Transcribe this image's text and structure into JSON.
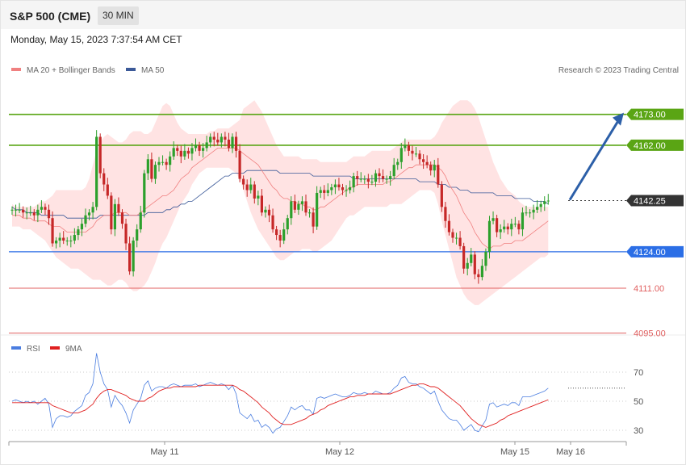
{
  "header": {
    "title": "S&P 500 (CME)",
    "interval": "30 MIN",
    "datetime": "Monday, May 15, 2023 7:37:54 AM CET"
  },
  "copyright": "Research © 2023 Trading Central",
  "colors": {
    "up": "#2ca02c",
    "down": "#c62828",
    "bands_fill": "#ffd9d9",
    "ma20": "#f08080",
    "ma50": "#3b5998",
    "resistance": "#5aa514",
    "support": "#2b6ee6",
    "lower_support": "#e06060",
    "arrow": "#2c5fa8",
    "last_price": "#333333",
    "rsi": "#4a7de0",
    "rsi_ma": "#e02020"
  },
  "chart_data": [
    {
      "type": "candlestick",
      "title": "",
      "legend": [
        "MA 20 + Bollinger Bands",
        "MA 50"
      ],
      "legend_position": "top-left",
      "ylim": [
        4090,
        4185
      ],
      "x_tick_labels": [
        "May 11",
        "May 12",
        "May 15",
        "May 16"
      ],
      "levels": [
        {
          "label": "4173.00",
          "value": 4173.0,
          "kind": "resistance"
        },
        {
          "label": "4162.00",
          "value": 4162.0,
          "kind": "resistance"
        },
        {
          "label": "4142.25",
          "value": 4142.25,
          "kind": "last_price"
        },
        {
          "label": "4124.00",
          "value": 4124.0,
          "kind": "support"
        },
        {
          "label": "4111.00",
          "value": 4111.0,
          "kind": "support"
        },
        {
          "label": "4095.00",
          "value": 4095.0,
          "kind": "support"
        }
      ],
      "projection": {
        "from": 4142.5,
        "to": 4173.0
      },
      "close": [
        4139,
        4139,
        4139,
        4138,
        4138,
        4138,
        4137,
        4139,
        4140,
        4139,
        4136,
        4127,
        4128,
        4129,
        4128,
        4128,
        4128,
        4130,
        4132,
        4134,
        4137,
        4138,
        4140,
        4165,
        4152,
        4148,
        4144,
        4132,
        4141,
        4138,
        4134,
        4127,
        4117,
        4128,
        4132,
        4138,
        4152,
        4157,
        4150,
        4155,
        4156,
        4156,
        4155,
        4158,
        4161,
        4160,
        4158,
        4160,
        4159,
        4161,
        4162,
        4160,
        4161,
        4163,
        4165,
        4164,
        4163,
        4165,
        4164,
        4161,
        4165,
        4160,
        4150,
        4148,
        4146,
        4148,
        4143,
        4144,
        4138,
        4139,
        4137,
        4132,
        4130,
        4128,
        4132,
        4136,
        4142,
        4139,
        4141,
        4142,
        4138,
        4138,
        4133,
        4145,
        4146,
        4145,
        4146,
        4147,
        4148,
        4147,
        4146,
        4146,
        4147,
        4151,
        4150,
        4150,
        4150,
        4149,
        4149,
        4152,
        4151,
        4150,
        4150,
        4151,
        4155,
        4156,
        4161,
        4162,
        4160,
        4159,
        4159,
        4157,
        4156,
        4155,
        4153,
        4155,
        4148,
        4140,
        4135,
        4131,
        4129,
        4129,
        4126,
        4118,
        4120,
        4123,
        4116,
        4115,
        4119,
        4124,
        4135,
        4136,
        4131,
        4132,
        4133,
        4132,
        4134,
        4134,
        4132,
        4138,
        4138,
        4138,
        4139,
        4140,
        4141,
        4142,
        4142.25
      ],
      "ma20": [
        4137,
        4137,
        4137,
        4136,
        4136,
        4136,
        4135,
        4135,
        4135,
        4135,
        4134,
        4133,
        4133,
        4133,
        4132,
        4131,
        4131,
        4131,
        4131,
        4131,
        4131,
        4132,
        4133,
        4135,
        4136,
        4137,
        4137,
        4137,
        4138,
        4138,
        4138,
        4138,
        4137,
        4137,
        4137,
        4138,
        4139,
        4140,
        4141,
        4142,
        4143,
        4144,
        4144,
        4145,
        4146,
        4148,
        4150,
        4151,
        4152,
        4154,
        4155,
        4156,
        4157,
        4158,
        4159,
        4160,
        4161,
        4161,
        4161,
        4161,
        4161,
        4161,
        4160,
        4159,
        4158,
        4157,
        4156,
        4155,
        4153,
        4151,
        4149,
        4147,
        4146,
        4144,
        4143,
        4143,
        4142,
        4142,
        4141,
        4141,
        4140,
        4140,
        4139,
        4139,
        4140,
        4140,
        4141,
        4142,
        4143,
        4144,
        4145,
        4146,
        4147,
        4147,
        4148,
        4148,
        4148,
        4148,
        4148,
        4148,
        4148,
        4148,
        4149,
        4149,
        4150,
        4151,
        4152,
        4153,
        4154,
        4154,
        4155,
        4155,
        4155,
        4155,
        4155,
        4155,
        4154,
        4153,
        4151,
        4148,
        4146,
        4144,
        4141,
        4138,
        4136,
        4134,
        4131,
        4129,
        4127,
        4126,
        4125,
        4126,
        4126,
        4126,
        4127,
        4127,
        4127,
        4128,
        4128,
        4128,
        4129,
        4130,
        4131,
        4132,
        4133,
        4134,
        4135
      ],
      "ma50": [
        4140,
        4139,
        4139,
        4139,
        4138,
        4138,
        4138,
        4138,
        4137,
        4137,
        4137,
        4137,
        4137,
        4137,
        4137,
        4136,
        4136,
        4136,
        4136,
        4136,
        4136,
        4136,
        4136,
        4136,
        4137,
        4137,
        4137,
        4137,
        4137,
        4137,
        4137,
        4137,
        4137,
        4137,
        4137,
        4137,
        4137,
        4138,
        4138,
        4138,
        4138,
        4138,
        4139,
        4139,
        4140,
        4140,
        4141,
        4141,
        4142,
        4142,
        4143,
        4144,
        4145,
        4146,
        4147,
        4148,
        4149,
        4150,
        4151,
        4151,
        4152,
        4152,
        4152,
        4152,
        4153,
        4153,
        4153,
        4153,
        4153,
        4153,
        4153,
        4153,
        4153,
        4152,
        4152,
        4152,
        4152,
        4152,
        4152,
        4152,
        4152,
        4152,
        4151,
        4151,
        4151,
        4151,
        4151,
        4151,
        4151,
        4151,
        4151,
        4151,
        4151,
        4150,
        4150,
        4150,
        4150,
        4150,
        4150,
        4150,
        4150,
        4150,
        4150,
        4150,
        4150,
        4150,
        4150,
        4150,
        4150,
        4150,
        4150,
        4149,
        4149,
        4149,
        4149,
        4149,
        4148,
        4148,
        4148,
        4147,
        4147,
        4147,
        4146,
        4146,
        4146,
        4145,
        4145,
        4145,
        4145,
        4145,
        4145,
        4145,
        4144,
        4144,
        4144,
        4144,
        4144,
        4143,
        4143,
        4143,
        4143,
        4143,
        4142,
        4142,
        4142,
        4142,
        4141
      ],
      "bb_upper": [
        4141,
        4140,
        4140,
        4140,
        4140,
        4140,
        4140,
        4141,
        4142,
        4142,
        4143,
        4144,
        4146,
        4146,
        4146,
        4146,
        4146,
        4146,
        4146,
        4146,
        4147,
        4150,
        4155,
        4160,
        4163,
        4165,
        4166,
        4165,
        4164,
        4163,
        4163,
        4164,
        4166,
        4167,
        4167,
        4167,
        4166,
        4166,
        4167,
        4170,
        4173,
        4176,
        4177,
        4176,
        4173,
        4170,
        4168,
        4167,
        4166,
        4166,
        4166,
        4166,
        4166,
        4166,
        4167,
        4167,
        4168,
        4168,
        4168,
        4168,
        4169,
        4170,
        4171,
        4175,
        4176,
        4177,
        4178,
        4176,
        4174,
        4171,
        4168,
        4165,
        4162,
        4160,
        4158,
        4158,
        4158,
        4158,
        4158,
        4157,
        4157,
        4157,
        4157,
        4157,
        4156,
        4156,
        4156,
        4156,
        4156,
        4156,
        4156,
        4156,
        4157,
        4158,
        4158,
        4158,
        4158,
        4159,
        4160,
        4160,
        4160,
        4160,
        4160,
        4160,
        4161,
        4162,
        4163,
        4164,
        4164,
        4164,
        4164,
        4164,
        4164,
        4164,
        4164,
        4165,
        4167,
        4170,
        4172,
        4174,
        4176,
        4177,
        4178,
        4178,
        4178,
        4177,
        4175,
        4172,
        4168,
        4164,
        4160,
        4156,
        4153,
        4150,
        4148,
        4146,
        4145,
        4144,
        4142,
        4141,
        4140,
        4140,
        4140,
        4140,
        4140,
        4140,
        4140
      ],
      "bb_lower": [
        4133,
        4133,
        4133,
        4132,
        4132,
        4132,
        4131,
        4130,
        4129,
        4128,
        4126,
        4124,
        4122,
        4121,
        4120,
        4119,
        4118,
        4118,
        4118,
        4117,
        4116,
        4115,
        4114,
        4114,
        4114,
        4113,
        4112,
        4112,
        4113,
        4114,
        4114,
        4113,
        4111,
        4110,
        4110,
        4111,
        4112,
        4114,
        4117,
        4120,
        4124,
        4127,
        4129,
        4132,
        4135,
        4138,
        4141,
        4143,
        4145,
        4148,
        4150,
        4152,
        4153,
        4154,
        4154,
        4154,
        4154,
        4154,
        4154,
        4154,
        4153,
        4152,
        4150,
        4146,
        4142,
        4138,
        4135,
        4132,
        4130,
        4128,
        4126,
        4124,
        4122,
        4121,
        4121,
        4122,
        4123,
        4124,
        4124,
        4125,
        4125,
        4125,
        4124,
        4124,
        4125,
        4126,
        4127,
        4128,
        4130,
        4132,
        4134,
        4136,
        4137,
        4137,
        4138,
        4139,
        4140,
        4140,
        4140,
        4140,
        4140,
        4140,
        4140,
        4141,
        4141,
        4141,
        4141,
        4142,
        4143,
        4144,
        4145,
        4146,
        4146,
        4146,
        4146,
        4145,
        4141,
        4135,
        4130,
        4125,
        4120,
        4115,
        4112,
        4109,
        4107,
        4106,
        4105,
        4105,
        4106,
        4107,
        4108,
        4109,
        4110,
        4111,
        4112,
        4113,
        4114,
        4115,
        4116,
        4117,
        4118,
        4119,
        4120,
        4121,
        4122,
        4122,
        4123
      ]
    },
    {
      "type": "line",
      "title": "",
      "legend": [
        "RSI",
        "9MA"
      ],
      "legend_position": "top-left",
      "ylim": [
        15,
        80
      ],
      "y_tick_labels": [
        "70",
        "50",
        "30"
      ],
      "rsi": [
        50,
        51,
        50,
        49,
        50,
        49,
        50,
        48,
        50,
        52,
        48,
        32,
        38,
        40,
        40,
        39,
        40,
        43,
        45,
        47,
        54,
        56,
        62,
        83,
        70,
        62,
        58,
        46,
        54,
        50,
        47,
        42,
        35,
        44,
        48,
        52,
        61,
        64,
        57,
        59,
        60,
        60,
        59,
        61,
        62,
        61,
        60,
        61,
        61,
        61,
        62,
        60,
        61,
        62,
        63,
        62,
        61,
        62,
        61,
        58,
        61,
        55,
        42,
        40,
        38,
        41,
        36,
        37,
        32,
        34,
        32,
        28,
        31,
        32,
        36,
        40,
        46,
        44,
        46,
        47,
        44,
        44,
        41,
        52,
        53,
        52,
        53,
        54,
        55,
        54,
        53,
        53,
        54,
        56,
        55,
        55,
        56,
        55,
        55,
        57,
        56,
        55,
        55,
        56,
        59,
        61,
        66,
        67,
        63,
        62,
        62,
        60,
        59,
        57,
        55,
        57,
        50,
        44,
        41,
        38,
        37,
        37,
        34,
        30,
        32,
        34,
        30,
        29,
        33,
        37,
        48,
        49,
        46,
        47,
        48,
        47,
        49,
        49,
        47,
        53,
        53,
        53,
        54,
        55,
        56,
        57,
        59
      ],
      "rsi_ma": [
        49,
        49,
        49,
        49,
        49,
        49,
        49,
        49,
        49,
        49,
        49,
        47,
        46,
        45,
        44,
        43,
        42,
        42,
        42,
        43,
        44,
        46,
        48,
        52,
        55,
        57,
        58,
        58,
        57,
        56,
        55,
        54,
        52,
        51,
        50,
        50,
        50,
        52,
        53,
        55,
        57,
        58,
        59,
        59,
        60,
        60,
        60,
        60,
        60,
        60,
        60,
        61,
        61,
        61,
        61,
        61,
        61,
        61,
        61,
        61,
        61,
        60,
        58,
        57,
        55,
        53,
        51,
        49,
        46,
        44,
        42,
        39,
        37,
        35,
        34,
        34,
        34,
        35,
        36,
        37,
        38,
        40,
        41,
        42,
        44,
        45,
        47,
        48,
        49,
        50,
        51,
        52,
        53,
        53,
        54,
        54,
        54,
        55,
        55,
        55,
        55,
        55,
        55,
        55,
        56,
        57,
        58,
        59,
        60,
        61,
        61,
        62,
        62,
        61,
        60,
        60,
        59,
        57,
        55,
        53,
        51,
        49,
        47,
        44,
        41,
        38,
        36,
        34,
        33,
        32,
        33,
        34,
        35,
        37,
        38,
        40,
        41,
        42,
        43,
        44,
        45,
        46,
        47,
        48,
        49,
        50,
        51
      ]
    }
  ]
}
